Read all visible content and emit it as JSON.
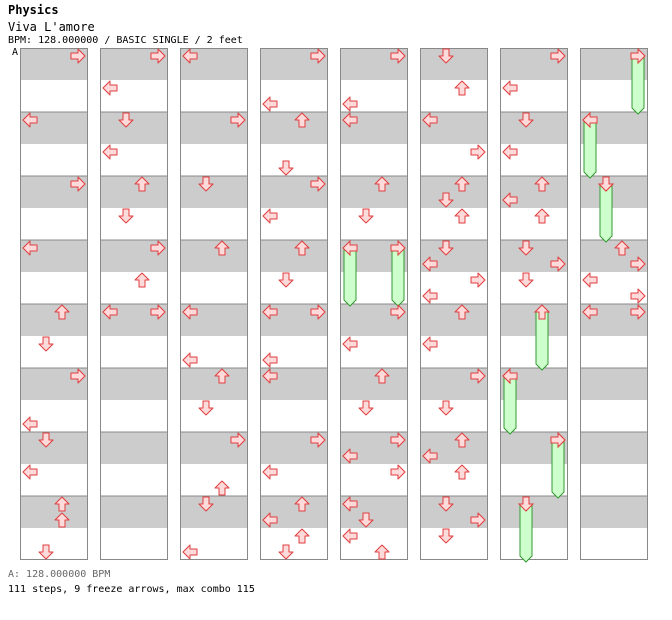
{
  "header": {
    "category": "Physics",
    "song_title": "Viva L'amore",
    "info": "BPM: 128.000000 / BASIC SINGLE / 2 feet",
    "marker": "A"
  },
  "footer": {
    "bpm_line": "A: 128.000000 BPM",
    "stats_line": "111 steps, 9 freeze arrows, max combo 115"
  },
  "colors": {
    "stripe": "#cccccc",
    "border": "#888888",
    "arrow_fill": "#ffdada",
    "arrow_stroke": "#e03c3c",
    "freeze_fill": "#ccffcc",
    "freeze_stroke": "#339933"
  },
  "chart": {
    "lanes": [
      "left",
      "down",
      "up",
      "right"
    ],
    "columns": [
      {
        "notes": [
          {
            "r": 0,
            "l": 3
          },
          {
            "r": 4,
            "l": 0
          },
          {
            "r": 8,
            "l": 3
          },
          {
            "r": 12,
            "l": 0
          },
          {
            "r": 16,
            "l": 2
          },
          {
            "r": 18,
            "l": 1
          },
          {
            "r": 20,
            "l": 3
          },
          {
            "r": 23,
            "l": 0
          },
          {
            "r": 24,
            "l": 1
          },
          {
            "r": 26,
            "l": 0
          },
          {
            "r": 28,
            "l": 2
          },
          {
            "r": 29,
            "l": 2
          },
          {
            "r": 31,
            "l": 1
          }
        ],
        "freezes": []
      },
      {
        "notes": [
          {
            "r": 0,
            "l": 3
          },
          {
            "r": 2,
            "l": 0
          },
          {
            "r": 4,
            "l": 1
          },
          {
            "r": 6,
            "l": 0
          },
          {
            "r": 8,
            "l": 2
          },
          {
            "r": 10,
            "l": 1
          },
          {
            "r": 12,
            "l": 3
          },
          {
            "r": 14,
            "l": 2
          },
          {
            "r": 16,
            "l": 0
          },
          {
            "r": 16,
            "l": 3
          }
        ],
        "freezes": []
      },
      {
        "notes": [
          {
            "r": 0,
            "l": 0
          },
          {
            "r": 4,
            "l": 3
          },
          {
            "r": 8,
            "l": 1
          },
          {
            "r": 12,
            "l": 2
          },
          {
            "r": 16,
            "l": 0
          },
          {
            "r": 19,
            "l": 0
          },
          {
            "r": 20,
            "l": 2
          },
          {
            "r": 22,
            "l": 1
          },
          {
            "r": 24,
            "l": 3
          },
          {
            "r": 27,
            "l": 2
          },
          {
            "r": 28,
            "l": 1
          },
          {
            "r": 31,
            "l": 0
          }
        ],
        "freezes": []
      },
      {
        "notes": [
          {
            "r": 0,
            "l": 3
          },
          {
            "r": 3,
            "l": 0
          },
          {
            "r": 4,
            "l": 2
          },
          {
            "r": 7,
            "l": 1
          },
          {
            "r": 8,
            "l": 3
          },
          {
            "r": 10,
            "l": 0
          },
          {
            "r": 12,
            "l": 2
          },
          {
            "r": 14,
            "l": 1
          },
          {
            "r": 16,
            "l": 0
          },
          {
            "r": 16,
            "l": 3
          },
          {
            "r": 19,
            "l": 0
          },
          {
            "r": 20,
            "l": 0
          },
          {
            "r": 24,
            "l": 3
          },
          {
            "r": 26,
            "l": 0
          },
          {
            "r": 28,
            "l": 2
          },
          {
            "r": 29,
            "l": 0
          },
          {
            "r": 30,
            "l": 2
          },
          {
            "r": 31,
            "l": 1
          }
        ],
        "freezes": []
      },
      {
        "notes": [
          {
            "r": 0,
            "l": 3
          },
          {
            "r": 3,
            "l": 0
          },
          {
            "r": 4,
            "l": 0
          },
          {
            "r": 8,
            "l": 2
          },
          {
            "r": 10,
            "l": 1
          },
          {
            "r": 16,
            "l": 3
          },
          {
            "r": 18,
            "l": 0
          },
          {
            "r": 20,
            "l": 2
          },
          {
            "r": 22,
            "l": 1
          },
          {
            "r": 24,
            "l": 3
          },
          {
            "r": 25,
            "l": 0
          },
          {
            "r": 26,
            "l": 3
          },
          {
            "r": 28,
            "l": 0
          },
          {
            "r": 29,
            "l": 1
          },
          {
            "r": 30,
            "l": 0
          },
          {
            "r": 31,
            "l": 2
          }
        ],
        "freezes": [
          {
            "l": 0,
            "start": 12,
            "end": 15.5
          },
          {
            "l": 3,
            "start": 12,
            "end": 15.5
          }
        ]
      },
      {
        "notes": [
          {
            "r": 0,
            "l": 1
          },
          {
            "r": 2,
            "l": 2
          },
          {
            "r": 4,
            "l": 0
          },
          {
            "r": 6,
            "l": 3
          },
          {
            "r": 8,
            "l": 2
          },
          {
            "r": 9,
            "l": 1
          },
          {
            "r": 10,
            "l": 2
          },
          {
            "r": 12,
            "l": 1
          },
          {
            "r": 13,
            "l": 0
          },
          {
            "r": 14,
            "l": 3
          },
          {
            "r": 15,
            "l": 0
          },
          {
            "r": 16,
            "l": 2
          },
          {
            "r": 18,
            "l": 0
          },
          {
            "r": 20,
            "l": 3
          },
          {
            "r": 22,
            "l": 1
          },
          {
            "r": 24,
            "l": 2
          },
          {
            "r": 25,
            "l": 0
          },
          {
            "r": 26,
            "l": 2
          },
          {
            "r": 28,
            "l": 1
          },
          {
            "r": 29,
            "l": 3
          },
          {
            "r": 30,
            "l": 1
          }
        ],
        "freezes": []
      },
      {
        "notes": [
          {
            "r": 0,
            "l": 3
          },
          {
            "r": 2,
            "l": 0
          },
          {
            "r": 4,
            "l": 1
          },
          {
            "r": 6,
            "l": 0
          },
          {
            "r": 8,
            "l": 2
          },
          {
            "r": 9,
            "l": 0
          },
          {
            "r": 10,
            "l": 2
          },
          {
            "r": 12,
            "l": 1
          },
          {
            "r": 13,
            "l": 3
          },
          {
            "r": 14,
            "l": 1
          },
          {
            "r": 20,
            "l": 0
          },
          {
            "r": 24,
            "l": 3
          }
        ],
        "freezes": [
          {
            "l": 2,
            "start": 16,
            "end": 19.5
          },
          {
            "l": 0,
            "start": 20,
            "end": 23.5
          },
          {
            "l": 3,
            "start": 24,
            "end": 27.5
          },
          {
            "l": 1,
            "start": 28,
            "end": 31.5
          }
        ]
      },
      {
        "notes": [
          {
            "r": 4,
            "l": 0
          },
          {
            "r": 8,
            "l": 1
          },
          {
            "r": 12,
            "l": 2
          },
          {
            "r": 13,
            "l": 3
          },
          {
            "r": 14,
            "l": 0
          },
          {
            "r": 15,
            "l": 3
          },
          {
            "r": 16,
            "l": 0
          },
          {
            "r": 16,
            "l": 3
          }
        ],
        "freezes": [
          {
            "l": 3,
            "start": 0,
            "end": 3.5
          },
          {
            "l": 0,
            "start": 4,
            "end": 7.5
          },
          {
            "l": 1,
            "start": 8,
            "end": 11.5
          }
        ]
      }
    ]
  }
}
